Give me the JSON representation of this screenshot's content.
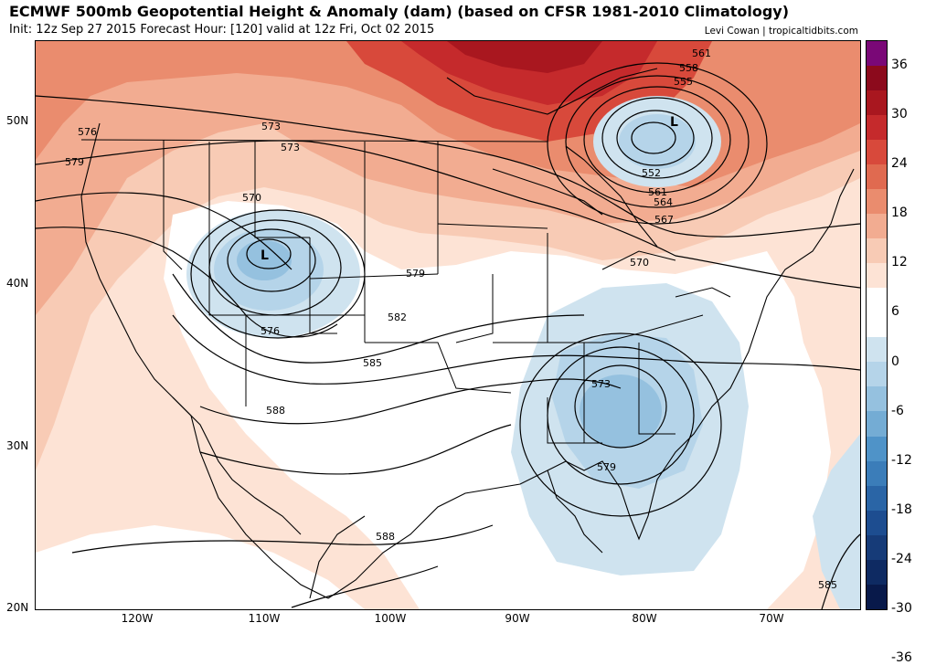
{
  "header": {
    "title": "ECMWF 500mb Geopotential Height & Anomaly (dam) (based on CFSR 1981-2010 Climatology)",
    "subtitle": "Init: 12z Sep 27 2015   Forecast Hour: [120]   valid at 12z Fri, Oct 02 2015",
    "credit": "Levi Cowan | tropicaltidbits.com"
  },
  "map": {
    "lat_labels": [
      "50N",
      "40N",
      "30N",
      "20N"
    ],
    "lon_labels": [
      "120W",
      "110W",
      "100W",
      "90W",
      "80W",
      "70W"
    ],
    "contour_labels": [
      "573",
      "576",
      "579",
      "573",
      "570",
      "576",
      "579",
      "582",
      "585",
      "588",
      "588",
      "561",
      "558",
      "555",
      "552",
      "561",
      "564",
      "567",
      "570",
      "573",
      "579",
      "585"
    ],
    "lows": [
      "L",
      "L"
    ]
  },
  "colorbar": {
    "labels": [
      "36",
      "30",
      "24",
      "18",
      "12",
      "6",
      "0",
      "-6",
      "-12",
      "-18",
      "-24",
      "-30",
      "-36"
    ],
    "colors": [
      "#7a0877",
      "#8c0a1c",
      "#a9171f",
      "#c52a2c",
      "#d8493b",
      "#e06a50",
      "#ea8c6e",
      "#f2ac91",
      "#f8cbb5",
      "#fde3d5",
      "#ffffff",
      "#ffffff",
      "#cfe3ef",
      "#b5d4e9",
      "#95c1df",
      "#74acd4",
      "#4f93c8",
      "#3b7db9",
      "#2a65a6",
      "#1d4d90",
      "#163b78",
      "#0e2a62",
      "#08194a"
    ]
  }
}
